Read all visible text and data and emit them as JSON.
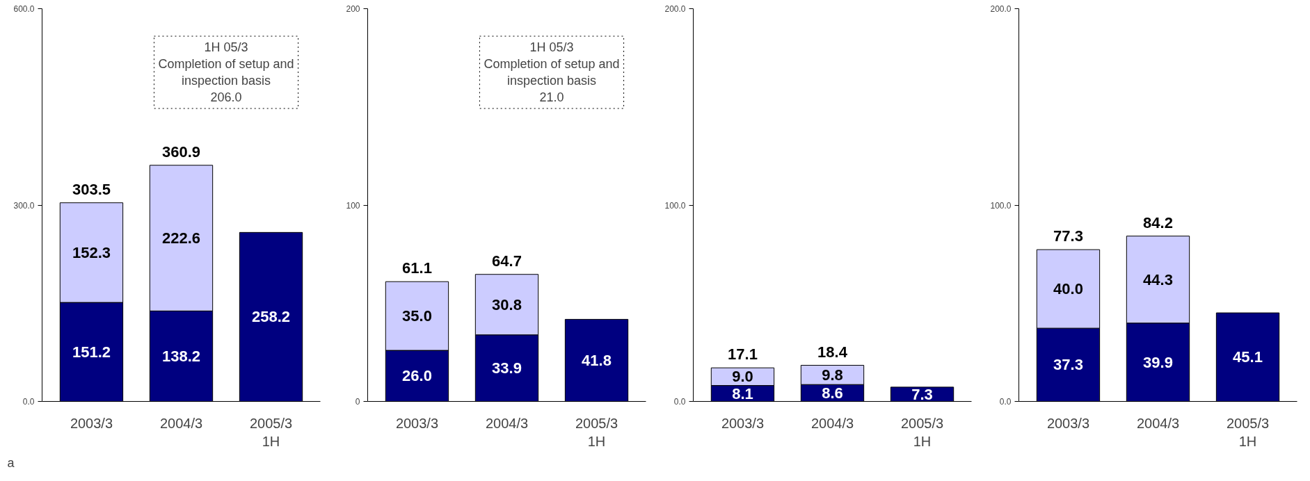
{
  "chart_data": [
    {
      "type": "bar",
      "stacked": true,
      "grid": false,
      "categories": [
        "2003/3",
        "2004/3",
        "2005/3\n1H"
      ],
      "ylim": [
        0,
        600
      ],
      "yticks": [
        {
          "value": 0,
          "label": "0.0"
        },
        {
          "value": 300,
          "label": "300.0"
        },
        {
          "value": 600,
          "label": "600.0"
        }
      ],
      "series": [
        {
          "color": "#000080",
          "values": [
            151.2,
            138.2,
            258.2
          ],
          "value_labels": [
            "151.2",
            "138.2",
            "258.2"
          ]
        },
        {
          "color": "#ccccff",
          "values": [
            152.3,
            222.6,
            null
          ],
          "value_labels": [
            "152.3",
            "222.6",
            null
          ]
        }
      ],
      "totals": [
        "303.5",
        "360.9",
        null
      ],
      "annotations": [
        "1H 05/3\nCompletion of setup and\ninspection basis\n206.0",
        "a"
      ]
    },
    {
      "type": "bar",
      "stacked": true,
      "grid": false,
      "categories": [
        "2003/3",
        "2004/3",
        "2005/3\n1H"
      ],
      "ylim": [
        0,
        200
      ],
      "yticks": [
        0,
        100,
        200
      ],
      "series": [
        {
          "color": "#000080",
          "values": [
            26.0,
            33.9,
            41.8
          ],
          "value_labels": [
            "26.0",
            "33.9",
            "41.8"
          ]
        },
        {
          "color": "#ccccff",
          "values": [
            35.0,
            30.8,
            null
          ],
          "value_labels": [
            "35.0",
            "30.8",
            null
          ]
        }
      ],
      "totals": [
        "61.1",
        "64.7",
        null
      ],
      "annotations": [
        "1H 05/3\nCompletion of setup and\ninspection basis\n21.0"
      ]
    },
    {
      "type": "bar",
      "stacked": true,
      "grid": false,
      "categories": [
        "2003/3",
        "2004/3",
        "2005/3\n1H"
      ],
      "ylim": [
        0,
        200
      ],
      "yticks": [
        {
          "value": 0,
          "label": "0.0"
        },
        {
          "value": 100,
          "label": "100.0"
        },
        {
          "value": 200,
          "label": "200.0"
        }
      ],
      "series": [
        {
          "color": "#000080",
          "values": [
            8.1,
            8.6,
            7.3
          ],
          "value_labels": [
            "8.1",
            "8.6",
            "7.3"
          ]
        },
        {
          "color": "#ccccff",
          "values": [
            9.0,
            9.8,
            null
          ],
          "value_labels": [
            "9.0",
            "9.8",
            null
          ]
        }
      ],
      "totals": [
        "17.1",
        "18.4",
        null
      ]
    },
    {
      "type": "bar",
      "stacked": true,
      "grid": false,
      "categories": [
        "2003/3",
        "2004/3",
        "2005/3\n1H"
      ],
      "ylim": [
        0,
        200
      ],
      "yticks": [
        {
          "value": 0,
          "label": "0.0"
        },
        {
          "value": 100,
          "label": "100.0"
        },
        {
          "value": 200,
          "label": "200.0"
        }
      ],
      "series": [
        {
          "color": "#000080",
          "values": [
            37.3,
            39.9,
            45.1
          ],
          "value_labels": [
            "37.3",
            "39.9",
            "45.1"
          ]
        },
        {
          "color": "#ccccff",
          "values": [
            40.0,
            44.3,
            null
          ],
          "value_labels": [
            "40.0",
            "44.3",
            null
          ]
        }
      ],
      "totals": [
        "77.3",
        "84.2",
        null
      ]
    }
  ]
}
